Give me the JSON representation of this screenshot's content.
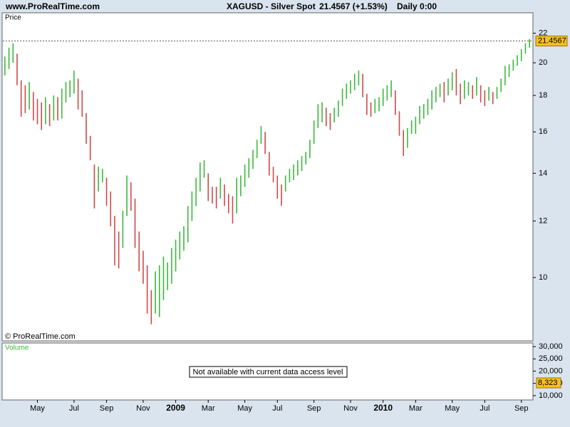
{
  "chart_data": {
    "type": "ohlc",
    "source": "www.ProRealTime.com",
    "title": "XAGUSD - Silver Spot",
    "subtitle": "21.4567 (+1.53%)",
    "timeframe": "Daily 0:00",
    "y_label": "Price",
    "watermark": "© ProRealTime.com",
    "up_color": "#3cb83c",
    "down_color": "#cc4a4a",
    "log_scale": true,
    "ylim": [
      8.15,
      23.5
    ],
    "yticks": [
      10,
      12,
      14,
      16,
      18,
      20,
      22
    ],
    "last_price": 21.4567,
    "categories": [
      null,
      null,
      null,
      null,
      null,
      null,
      null,
      null,
      "May",
      null,
      null,
      null,
      null,
      null,
      null,
      null,
      null,
      "Jul",
      null,
      null,
      null,
      null,
      null,
      null,
      null,
      "Sep",
      null,
      null,
      null,
      null,
      null,
      null,
      null,
      null,
      "Nov",
      null,
      null,
      null,
      null,
      null,
      null,
      null,
      "2009",
      null,
      null,
      null,
      null,
      null,
      null,
      null,
      "Mar",
      null,
      null,
      null,
      null,
      null,
      null,
      null,
      null,
      "May",
      null,
      null,
      null,
      null,
      null,
      null,
      null,
      "Jul",
      null,
      null,
      null,
      null,
      null,
      null,
      null,
      null,
      "Sep",
      null,
      null,
      null,
      null,
      null,
      null,
      null,
      null,
      "Nov",
      null,
      null,
      null,
      null,
      null,
      null,
      null,
      "2010",
      null,
      null,
      null,
      null,
      null,
      null,
      null,
      "Mar",
      null,
      null,
      null,
      null,
      null,
      null,
      null,
      null,
      "May",
      null,
      null,
      null,
      null,
      null,
      null,
      null,
      "Jul",
      null,
      null,
      null,
      null,
      null,
      null,
      null,
      null,
      "Sep",
      null,
      null
    ],
    "low": [
      19.2,
      19.6,
      20.0,
      18.6,
      16.8,
      17.0,
      17.2,
      16.6,
      16.4,
      16.1,
      16.4,
      16.3,
      16.6,
      16.6,
      16.7,
      17.6,
      17.9,
      18.1,
      17.2,
      16.8,
      15.4,
      14.6,
      12.5,
      13.2,
      13.6,
      12.6,
      11.8,
      10.4,
      10.3,
      11.0,
      12.2,
      12.4,
      11.0,
      10.2,
      9.8,
      8.9,
      8.6,
      8.9,
      8.8,
      9.3,
      9.6,
      9.8,
      10.2,
      10.6,
      10.9,
      11.2,
      12.0,
      12.6,
      13.2,
      13.8,
      12.8,
      12.7,
      12.5,
      12.9,
      12.6,
      12.3,
      11.9,
      12.3,
      13.0,
      13.4,
      13.8,
      14.2,
      14.7,
      15.4,
      14.9,
      13.9,
      13.6,
      12.9,
      12.6,
      13.2,
      13.6,
      13.7,
      13.9,
      14.1,
      14.4,
      14.7,
      15.4,
      16.2,
      16.5,
      16.3,
      16.1,
      16.5,
      16.8,
      17.4,
      17.8,
      18.1,
      18.3,
      18.6,
      17.9,
      16.9,
      16.8,
      17.0,
      17.1,
      17.4,
      17.7,
      17.9,
      16.9,
      15.8,
      14.8,
      15.2,
      15.9,
      15.9,
      16.4,
      16.7,
      16.9,
      17.2,
      17.6,
      17.9,
      17.6,
      18.0,
      18.3,
      18.0,
      17.5,
      17.8,
      18.0,
      17.8,
      18.0,
      17.6,
      17.4,
      17.7,
      17.5,
      17.8,
      18.2,
      18.6,
      19.1,
      19.5,
      19.8,
      20.1,
      20.6,
      21.0
    ],
    "high": [
      20.4,
      21.0,
      21.3,
      20.6,
      18.9,
      18.6,
      18.8,
      18.2,
      17.8,
      17.6,
      17.9,
      17.5,
      18.0,
      17.9,
      18.4,
      18.8,
      18.9,
      19.5,
      19.0,
      18.3,
      17.0,
      15.8,
      14.4,
      14.3,
      14.2,
      13.8,
      13.2,
      12.2,
      11.6,
      12.4,
      13.9,
      13.6,
      12.9,
      11.6,
      10.9,
      10.4,
      9.6,
      10.2,
      10.4,
      10.7,
      10.5,
      11.0,
      11.3,
      11.6,
      11.8,
      12.6,
      13.2,
      13.8,
      14.5,
      14.6,
      14.0,
      13.4,
      13.4,
      13.8,
      13.5,
      13.1,
      13.0,
      13.8,
      13.9,
      14.4,
      14.7,
      15.1,
      15.6,
      16.3,
      16.0,
      15.0,
      14.3,
      13.9,
      13.5,
      13.9,
      14.2,
      14.4,
      14.6,
      14.8,
      15.0,
      15.6,
      16.6,
      17.5,
      17.6,
      17.3,
      17.0,
      17.3,
      17.7,
      18.4,
      18.7,
      18.9,
      19.3,
      19.5,
      19.3,
      18.1,
      17.6,
      17.8,
      17.9,
      18.4,
      18.6,
      18.9,
      18.3,
      17.1,
      16.1,
      16.2,
      16.6,
      16.8,
      17.4,
      17.5,
      17.8,
      18.3,
      18.5,
      18.7,
      18.8,
      19.0,
      19.4,
      19.6,
      18.7,
      18.9,
      18.8,
      18.6,
      19.1,
      18.6,
      18.3,
      18.5,
      18.2,
      18.5,
      19.0,
      19.8,
      19.9,
      20.2,
      20.5,
      20.9,
      21.3,
      21.6
    ],
    "volume_label": "Volume",
    "volume_message": "Not available with current data access level",
    "volume_ylim": [
      8235,
      31471
    ],
    "volume_yticks": [
      {
        "value": 30000,
        "label": "30,000"
      },
      {
        "value": 25000,
        "label": "25,000"
      },
      {
        "value": 20000,
        "label": "20,000"
      },
      {
        "value": 15000,
        "label": "15,000"
      },
      {
        "value": 10000,
        "label": "10,000"
      }
    ],
    "last_volume": {
      "value": 8323,
      "label": "8,323"
    }
  }
}
